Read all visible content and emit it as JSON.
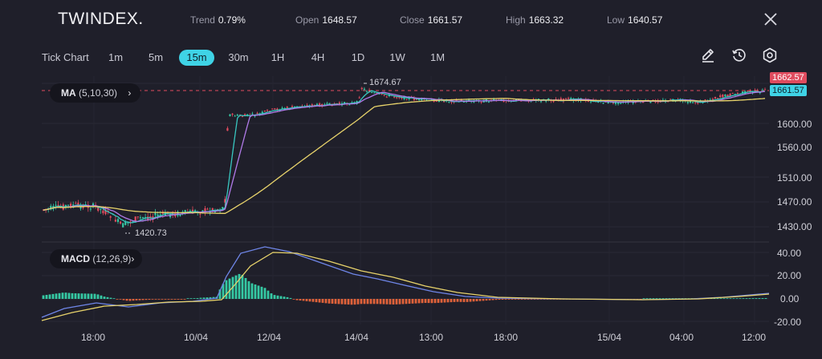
{
  "header": {
    "brand": "TWINDEX.",
    "stats": [
      {
        "key": "Trend",
        "value": "0.79%"
      },
      {
        "key": "Open",
        "value": "1648.57"
      },
      {
        "key": "Close",
        "value": "1661.57"
      },
      {
        "key": "High",
        "value": "1663.32"
      },
      {
        "key": "Low",
        "value": "1640.57"
      }
    ]
  },
  "toolbar": {
    "chart_type": "Tick Chart",
    "timeframes": [
      "1m",
      "5m",
      "15m",
      "30m",
      "1H",
      "4H",
      "1D",
      "1W",
      "1M"
    ],
    "active_timeframe": "15m",
    "icons": [
      "pencil-icon",
      "history-icon",
      "settings-icon"
    ]
  },
  "indicators": {
    "ma": {
      "name": "MA",
      "params": "(5,10,30)"
    },
    "macd": {
      "name": "MACD",
      "params": "(12,26,9)"
    }
  },
  "price_panel": {
    "y_ticks": [
      "1600.00",
      "1560.00",
      "1510.00",
      "1470.00",
      "1430.00"
    ],
    "high_marker": "1674.67",
    "low_marker": "1420.73",
    "ask_tag": "1662.57",
    "bid_tag": "1661.57"
  },
  "macd_panel": {
    "y_ticks": [
      "40.00",
      "20.00",
      "0.00",
      "-20.00"
    ]
  },
  "x_ticks": [
    "18:00",
    "10/04",
    "12/04",
    "14/04",
    "13:00",
    "18:00",
    "15/04",
    "04:00",
    "12:00"
  ],
  "colors": {
    "background": "#1f1f2a",
    "accent": "#3fd3e6",
    "up": "#35c9a4",
    "down": "#e04b5e",
    "ma5": "#38c7c0",
    "ma10": "#b07ae8",
    "ma30": "#e8d36b",
    "macd_line": "#6f86e8",
    "signal_line": "#e8d36b",
    "hist_pos": "#35c9a4",
    "hist_neg": "#e0623a"
  }
}
